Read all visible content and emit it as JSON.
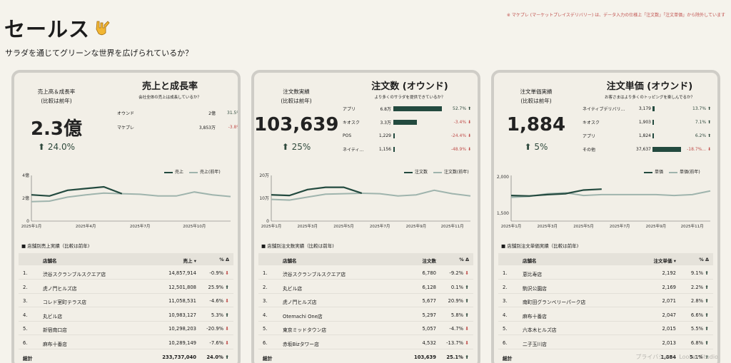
{
  "page": {
    "title": "セールス",
    "subtitle": "サラダを通じてグリーンな世界を広げられているか？",
    "note": "※ マケプレ (マーケットプレイスデリバリー) は、データ入力の仕様上「注文数」「注文単価」から除外しています",
    "footer": "プライバシー ｜ Looker Studio"
  },
  "colors": {
    "primary": "#234a3f",
    "previous": "#9fb4ad",
    "down": "#c0504d",
    "up": "#2f4a3d"
  },
  "cards": [
    {
      "kpi_label": "売上高＆成長率\n(比較は前年)",
      "kpi_value": "2.3億",
      "kpi_change": "⬆ 24.0%",
      "title": "売上と成長率",
      "subtitle": "会社全体の売上は成長しているか？",
      "breakdown": [
        {
          "label": "オウンド",
          "value": "2億",
          "pct": "31.5%",
          "dir": "up"
        },
        {
          "label": "マケプレ",
          "value": "3,853万",
          "pct": "-3.8%",
          "dir": "down"
        }
      ],
      "legend": {
        "current": "売上",
        "previous": "売上(前年)"
      },
      "chart": {
        "y_ticks": [
          "0",
          "2億",
          "4億"
        ],
        "x_ticks": [
          "2025年1月",
          "2025年4月",
          "2025年7月",
          "2025年10月"
        ],
        "current": [
          2.3,
          2.2,
          2.7,
          2.85,
          3.0,
          2.4
        ],
        "previous": [
          1.7,
          1.75,
          2.1,
          2.3,
          2.45,
          2.4,
          2.35,
          2.2,
          2.2,
          2.55,
          2.3,
          2.15
        ],
        "ymax": 4
      },
      "table": {
        "title": "■ 店舗別売上実績（比較は前年)",
        "headers": [
          "店舗名",
          "売上 ▾",
          "% Δ"
        ],
        "rows": [
          [
            "1.",
            "渋谷スクランブルスクエア店",
            "14,857,914",
            "-0.9%",
            "down"
          ],
          [
            "2.",
            "虎ノ門ヒルズ店",
            "12,501,808",
            "25.9%",
            "up"
          ],
          [
            "3.",
            "コレド室町テラス店",
            "11,058,531",
            "-4.6%",
            "down"
          ],
          [
            "4.",
            "丸ビル店",
            "10,983,127",
            "5.3%",
            "up"
          ],
          [
            "5.",
            "新宿南口店",
            "10,298,203",
            "-20.9%",
            "down"
          ],
          [
            "6.",
            "麻布十番店",
            "10,289,149",
            "-7.6%",
            "down"
          ]
        ],
        "total": [
          "総計",
          "233,737,040",
          "24.0%"
        ]
      }
    },
    {
      "kpi_label": "注文数実績\n(比較は前年)",
      "kpi_value": "103,639",
      "kpi_change": "⬆ 25%",
      "title": "注文数 (オウンド)",
      "subtitle": "より多くのサラダを提供できているか？",
      "breakdown": [
        {
          "label": "アプリ",
          "value": "6.8万",
          "bar": 1.0,
          "pct": "52.7%",
          "dir": "up"
        },
        {
          "label": "キオスク",
          "value": "3.3万",
          "bar": 0.48,
          "pct": "-3.4%",
          "dir": "down"
        },
        {
          "label": "POS",
          "value": "1,229",
          "bar": 0.02,
          "pct": "-24.4%",
          "dir": "down"
        },
        {
          "label": "ネイティ...",
          "value": "1,156",
          "bar": 0.02,
          "pct": "-48.9%",
          "dir": "down"
        }
      ],
      "legend": {
        "current": "注文数",
        "previous": "注文数(前年)"
      },
      "chart": {
        "y_ticks": [
          "0",
          "10万",
          "20万"
        ],
        "x_ticks": [
          "2025年1月",
          "2025年3月",
          "2025年5月",
          "2025年7月",
          "2025年9月",
          "2025年11月"
        ],
        "current": [
          11.5,
          11.2,
          13.8,
          14.8,
          14.8,
          12.2
        ],
        "previous": [
          9.5,
          9.2,
          10.5,
          11.8,
          12.0,
          12.2,
          12.0,
          11.0,
          11.5,
          13.5,
          12.0,
          11.0
        ],
        "ymax": 20
      },
      "table": {
        "title": "■ 店舗別注文数実績（比較は前年)",
        "headers": [
          "店舗名",
          "注文数",
          "% Δ"
        ],
        "rows": [
          [
            "1.",
            "渋谷スクランブルスクエア店",
            "6,780",
            "-9.2%",
            "down"
          ],
          [
            "2.",
            "丸ビル店",
            "6,128",
            "0.1%",
            "up"
          ],
          [
            "3.",
            "虎ノ門ヒルズ店",
            "5,677",
            "20.9%",
            "up"
          ],
          [
            "4.",
            "Otemachi One店",
            "5,297",
            "5.8%",
            "up"
          ],
          [
            "5.",
            "東京ミッドタウン店",
            "5,057",
            "-4.7%",
            "down"
          ],
          [
            "6.",
            "赤坂Bizタワー店",
            "4,532",
            "-13.7%",
            "down"
          ]
        ],
        "total": [
          "総計",
          "103,639",
          "25.1%"
        ]
      }
    },
    {
      "kpi_label": "注文単価実績\n(比較は前年)",
      "kpi_value": "1,884",
      "kpi_change": "⬆ 5%",
      "title": "注文単価 (オウンド)",
      "subtitle": "お客さまはより多くのトッピングを楽しんでるか？",
      "breakdown": [
        {
          "label": "ネイティブデリバリ...",
          "value": "3,179",
          "bar": 0.08,
          "pct": "13.7%",
          "dir": "up"
        },
        {
          "label": "キオスク",
          "value": "1,903",
          "bar": 0.05,
          "pct": "7.1%",
          "dir": "up"
        },
        {
          "label": "アプリ",
          "value": "1,824",
          "bar": 0.05,
          "pct": "6.2%",
          "dir": "up"
        },
        {
          "label": "その他",
          "value": "37,637",
          "bar": 1.0,
          "pct": "-18.7%...",
          "dir": "down"
        }
      ],
      "legend": {
        "current": "単価",
        "previous": "単価(前年)"
      },
      "chart": {
        "y_ticks": [
          "1,500",
          "2,000"
        ],
        "x_ticks": [
          "2025年1月",
          "2025年3月",
          "2025年5月",
          "2025年7月",
          "2025年9月",
          "2025年11月"
        ],
        "current": [
          1780,
          1775,
          1790,
          1800,
          1840,
          1850
        ],
        "previous": [
          1760,
          1770,
          1800,
          1810,
          1780,
          1790,
          1790,
          1790,
          1790,
          1780,
          1790,
          1830
        ],
        "ymin": 1500,
        "ymax": 2000
      },
      "table": {
        "title": "■ 店舗別注文単価実績（比較は前年)",
        "headers": [
          "店舗名",
          "注文単価 ▾",
          "% Δ"
        ],
        "rows": [
          [
            "1.",
            "恵比寿店",
            "2,192",
            "9.1%",
            "up"
          ],
          [
            "2.",
            "駒沢公園店",
            "2,169",
            "2.2%",
            "up"
          ],
          [
            "3.",
            "南町田グランベリーパーク店",
            "2,071",
            "2.8%",
            "up"
          ],
          [
            "4.",
            "麻布十番店",
            "2,047",
            "6.6%",
            "up"
          ],
          [
            "5.",
            "六本木ヒルズ店",
            "2,015",
            "5.5%",
            "up"
          ],
          [
            "6.",
            "二子玉川店",
            "2,013",
            "6.8%",
            "up"
          ]
        ],
        "total": [
          "総計",
          "1,884",
          "5.1%"
        ]
      }
    }
  ]
}
